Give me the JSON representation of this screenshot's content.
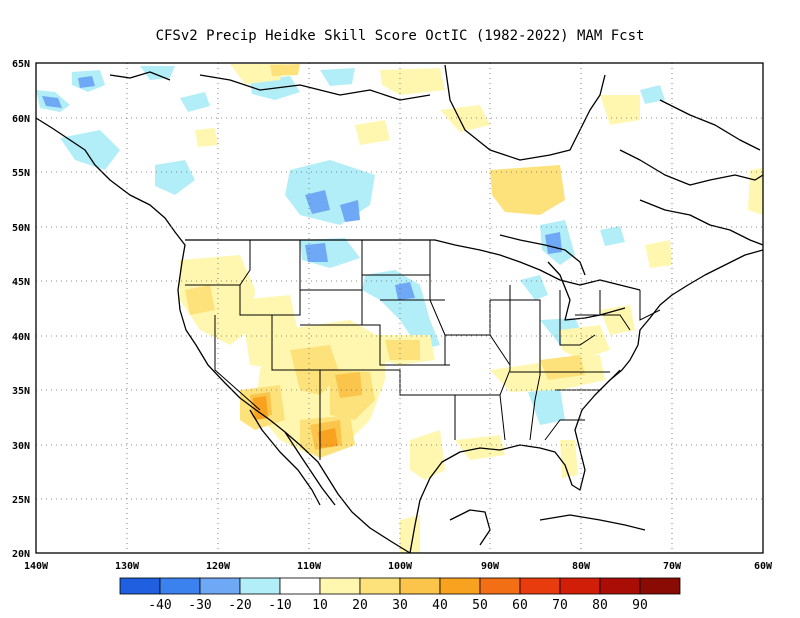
{
  "title": "CFSv2 Precip Heidke Skill Score OctIC (1982-2022) MAM Fcst",
  "axes": {
    "lat_labels": [
      "65N",
      "60N",
      "55N",
      "50N",
      "45N",
      "40N",
      "35N",
      "30N",
      "25N",
      "20N"
    ],
    "lon_labels": [
      "140W",
      "130W",
      "120W",
      "110W",
      "100W",
      "90W",
      "80W",
      "70W",
      "60W"
    ]
  },
  "colorbar": {
    "colors": [
      "#1f5fe0",
      "#3c82ef",
      "#6fa8f5",
      "#b2eef8",
      "#ffffff",
      "#fff7b0",
      "#fde27c",
      "#fbc44a",
      "#f8a21f",
      "#f26f16",
      "#e83b0e",
      "#d11e08",
      "#aa0d06",
      "#8a0a04"
    ],
    "labels": [
      "-40",
      "-30",
      "-20",
      "-10",
      "10",
      "20",
      "30",
      "40",
      "50",
      "60",
      "70",
      "80",
      "90"
    ]
  }
}
